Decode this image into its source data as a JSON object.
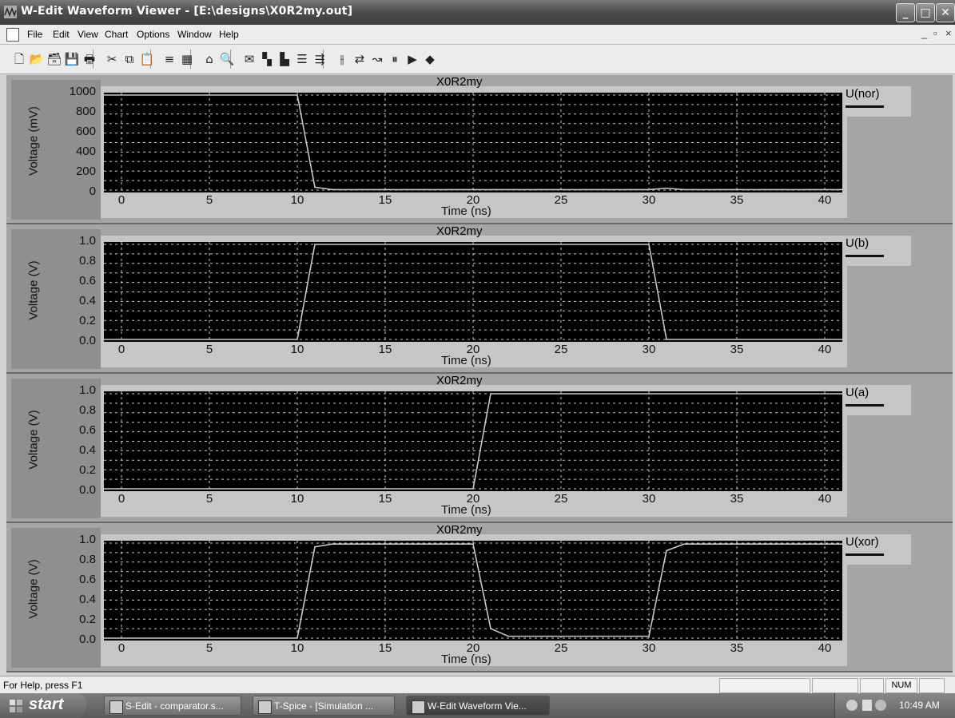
{
  "window": {
    "title": "W-Edit Waveform Viewer - [E:\\designs\\X0R2my.out]",
    "min_symbol": "_",
    "max_symbol": "□",
    "close_symbol": "✕"
  },
  "menu": {
    "items": [
      "File",
      "Edit",
      "View",
      "Chart",
      "Options",
      "Window",
      "Help"
    ],
    "mdi_controls": [
      "_",
      "▫",
      "×"
    ]
  },
  "toolbar": {
    "icons": [
      "new-icon",
      "open-icon",
      "open-recent-icon",
      "save-icon",
      "print-icon",
      "cut-icon",
      "copy-icon",
      "paste-icon",
      "list-icon",
      "grid-icon",
      "home-icon",
      "zoom-icon",
      "chart-icon",
      "bar-chart-icon",
      "bar-chart2-icon",
      "align-icon",
      "split-icon",
      "cursor-icon",
      "trace-icon",
      "measure-icon",
      "pause-icon",
      "play-icon",
      "book-icon"
    ],
    "glyphs": [
      "🗋",
      "📂",
      "🗃",
      "💾",
      "🖶",
      "✂",
      "⧉",
      "📋",
      "≡",
      "▦",
      "⌂",
      "🔍",
      "✉",
      "▚",
      "▙",
      "☰",
      "⇶",
      "⫲",
      "⇄",
      "↝",
      "⏸",
      "▶",
      "◆"
    ]
  },
  "charts": [
    {
      "title": "X0R2my",
      "ylabel": "Voltage (mV)",
      "yticks": [
        "1000",
        "800",
        "600",
        "400",
        "200",
        "0"
      ],
      "xticks": [
        "0",
        "5",
        "10",
        "15",
        "20",
        "25",
        "30",
        "35",
        "40"
      ],
      "xlabel": "Time (ns)",
      "legend": "U(nor)"
    },
    {
      "title": "X0R2my",
      "ylabel": "Voltage (V)",
      "yticks": [
        "1.0",
        "0.8",
        "0.6",
        "0.4",
        "0.2",
        "0.0"
      ],
      "xticks": [
        "0",
        "5",
        "10",
        "15",
        "20",
        "25",
        "30",
        "35",
        "40"
      ],
      "xlabel": "Time (ns)",
      "legend": "U(b)"
    },
    {
      "title": "X0R2my",
      "ylabel": "Voltage (V)",
      "yticks": [
        "1.0",
        "0.8",
        "0.6",
        "0.4",
        "0.2",
        "0.0"
      ],
      "xticks": [
        "0",
        "5",
        "10",
        "15",
        "20",
        "25",
        "30",
        "35",
        "40"
      ],
      "xlabel": "Time (ns)",
      "legend": "U(a)"
    },
    {
      "title": "X0R2my",
      "ylabel": "Voltage (V)",
      "yticks": [
        "1.0",
        "0.8",
        "0.6",
        "0.4",
        "0.2",
        "0.0"
      ],
      "xticks": [
        "0",
        "5",
        "10",
        "15",
        "20",
        "25",
        "30",
        "35",
        "40"
      ],
      "xlabel": "Time (ns)",
      "legend": "U(xor)"
    }
  ],
  "chart_data": [
    {
      "type": "line",
      "title": "X0R2my",
      "xlabel": "Time (ns)",
      "ylabel": "Voltage (mV)",
      "xlim": [
        -1,
        41
      ],
      "ylim": [
        0,
        1000
      ],
      "grid": true,
      "legend_position": "right",
      "series": [
        {
          "name": "U(nor)",
          "x": [
            -1,
            10,
            11,
            12,
            30,
            31,
            32,
            41
          ],
          "y": [
            1000,
            1000,
            30,
            5,
            5,
            20,
            5,
            5
          ]
        }
      ]
    },
    {
      "type": "line",
      "title": "X0R2my",
      "xlabel": "Time (ns)",
      "ylabel": "Voltage (V)",
      "xlim": [
        -1,
        41
      ],
      "ylim": [
        0,
        1.0
      ],
      "grid": true,
      "legend_position": "right",
      "series": [
        {
          "name": "U(b)",
          "x": [
            -1,
            10,
            11,
            30,
            31,
            41
          ],
          "y": [
            0,
            0,
            1.0,
            1.0,
            0,
            0
          ]
        }
      ]
    },
    {
      "type": "line",
      "title": "X0R2my",
      "xlabel": "Time (ns)",
      "ylabel": "Voltage (V)",
      "xlim": [
        -1,
        41
      ],
      "ylim": [
        0,
        1.0
      ],
      "grid": true,
      "legend_position": "right",
      "series": [
        {
          "name": "U(a)",
          "x": [
            -1,
            20,
            21,
            41
          ],
          "y": [
            0,
            0,
            1.0,
            1.0
          ]
        }
      ]
    },
    {
      "type": "line",
      "title": "X0R2my",
      "xlabel": "Time (ns)",
      "ylabel": "Voltage (V)",
      "xlim": [
        -1,
        41
      ],
      "ylim": [
        0,
        1.0
      ],
      "grid": true,
      "legend_position": "right",
      "series": [
        {
          "name": "U(xor)",
          "x": [
            -1,
            10,
            11,
            12,
            20,
            21,
            22,
            30,
            31,
            32,
            41
          ],
          "y": [
            0,
            0,
            0.96,
            0.99,
            0.99,
            0.1,
            0.02,
            0.02,
            0.92,
            0.99,
            0.99
          ]
        }
      ]
    }
  ],
  "statusbar": {
    "help": "For Help, press F1",
    "num": "NUM"
  },
  "taskbar": {
    "start": "start",
    "tasks": [
      "S-Edit - comparator.s...",
      "T-Spice - [Simulation ...",
      "W-Edit Waveform Vie..."
    ],
    "clock": "10:49 AM"
  },
  "colors": {
    "plot_bg": "#000000",
    "grid": "#c8c8c8",
    "trace": "#c8c8c8",
    "panel_bg": "#a5a5a5"
  }
}
